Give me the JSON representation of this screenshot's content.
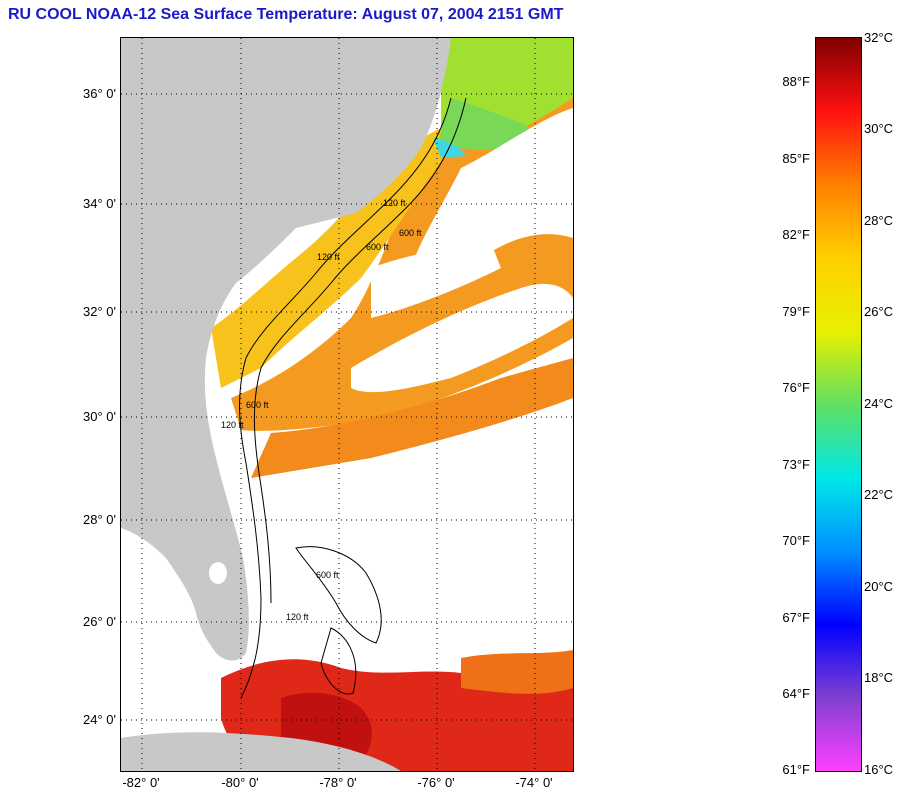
{
  "title": "RU COOL  NOAA-12  Sea Surface Temperature:  August 07, 2004 2151 GMT",
  "map": {
    "lat_labels": [
      "36° 0'",
      "34° 0'",
      "32° 0'",
      "30° 0'",
      "28° 0'",
      "26° 0'",
      "24° 0'"
    ],
    "lon_labels": [
      "-82° 0'",
      "-80° 0'",
      "-78° 0'",
      "-76° 0'",
      "-74° 0'"
    ],
    "contour_labels": [
      "120 ft",
      "600 ft",
      "120 ft",
      "600 ft",
      "120 ft",
      "600 ft",
      "120 ft",
      "600 ft"
    ],
    "colors": {
      "land": "#c8c8c8",
      "cloud": "#ffffff",
      "warm": "#f07818",
      "hot": "#d81818",
      "cool": "#a0e030"
    }
  },
  "colorbar": {
    "fahrenheit_labels": [
      "88°F",
      "85°F",
      "82°F",
      "79°F",
      "76°F",
      "73°F",
      "70°F",
      "67°F",
      "64°F",
      "61°F"
    ],
    "celsius_labels": [
      "32°C",
      "30°C",
      "28°C",
      "26°C",
      "24°C",
      "22°C",
      "20°C",
      "18°C",
      "16°C"
    ],
    "stops": [
      "#800000",
      "#ff1010",
      "#ff8000",
      "#ffd000",
      "#e8f000",
      "#60e060",
      "#00e8e8",
      "#0090ff",
      "#0000ff",
      "#8040d0",
      "#ff40ff"
    ]
  }
}
